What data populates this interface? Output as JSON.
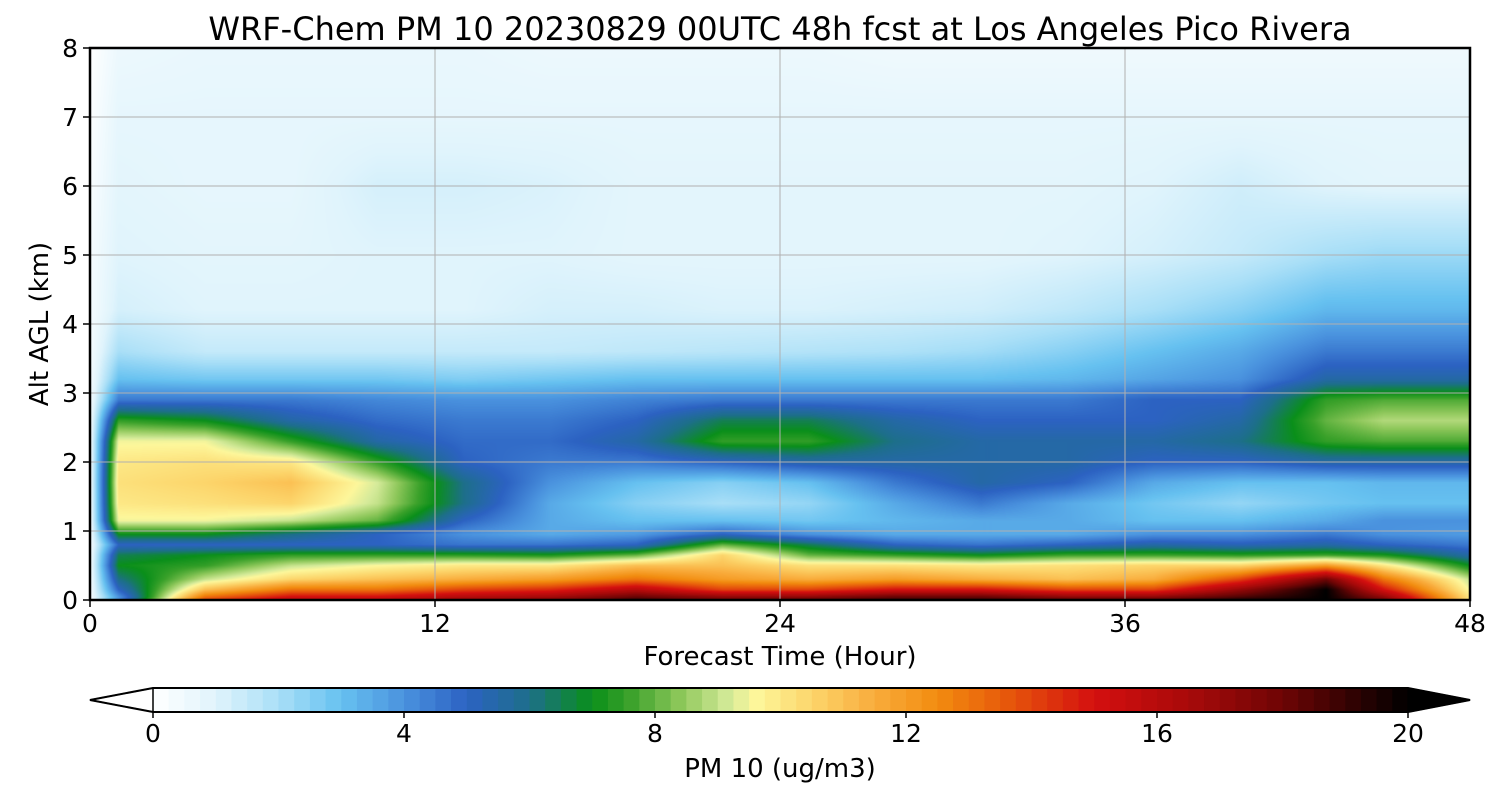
{
  "chart_data": {
    "type": "heatmap",
    "title": "WRF-Chem PM 10  20230829 00UTC 48h fcst at Los Angeles Pico Rivera",
    "xlabel": "Forecast Time (Hour)",
    "ylabel": "Alt AGL (km)",
    "xlim": [
      0,
      48
    ],
    "ylim": [
      0,
      8
    ],
    "x_ticks": [
      "0",
      "12",
      "24",
      "36",
      "48"
    ],
    "y_ticks": [
      "0",
      "1",
      "2",
      "3",
      "4",
      "5",
      "6",
      "7",
      "8"
    ],
    "grid": true,
    "colorbar": {
      "label": "PM 10  (ug/m3)",
      "range": [
        0,
        20
      ],
      "ticks": [
        "0",
        "4",
        "8",
        "12",
        "16",
        "20"
      ],
      "extend": "both",
      "colormap": [
        [
          0,
          "#ffffff"
        ],
        [
          1,
          "#e0f4fc"
        ],
        [
          2,
          "#a9dff7"
        ],
        [
          3,
          "#66c1f0"
        ],
        [
          4,
          "#4a92de"
        ],
        [
          5,
          "#2c62c2"
        ],
        [
          6,
          "#1d6f8a"
        ],
        [
          7,
          "#0a8f1a"
        ],
        [
          7.6,
          "#3aa12a"
        ],
        [
          8.4,
          "#8dc75a"
        ],
        [
          9.2,
          "#d6eb9a"
        ],
        [
          9.6,
          "#fdf79b"
        ],
        [
          10.5,
          "#fcd56b"
        ],
        [
          11.5,
          "#f9ac3c"
        ],
        [
          12.5,
          "#f28c0f"
        ],
        [
          13.5,
          "#e85d0b"
        ],
        [
          15,
          "#d40f0f"
        ],
        [
          16.5,
          "#a80a0a"
        ],
        [
          18,
          "#6e0505"
        ],
        [
          20,
          "#000000"
        ]
      ]
    },
    "hours": [
      0,
      1,
      4,
      7,
      10,
      13,
      16,
      19,
      22,
      25,
      28,
      31,
      34,
      37,
      40,
      43,
      45,
      48
    ],
    "levels_km": [
      0,
      0.05,
      0.15,
      0.3,
      0.5,
      0.65,
      0.8,
      0.95,
      1.15,
      1.4,
      1.7,
      2.0,
      2.3,
      2.6,
      2.9,
      3.2,
      3.6,
      4.2,
      5.0,
      6.0,
      7.0,
      8.0
    ],
    "values": [
      [
        0.3,
        4,
        14,
        16,
        16,
        17,
        17.5,
        19,
        18,
        18.5,
        19,
        19,
        18.5,
        18.5,
        19.5,
        20,
        18,
        10
      ],
      [
        0.3,
        4,
        13,
        15,
        15,
        16,
        16.5,
        18,
        17,
        17,
        18,
        18,
        17,
        17,
        18.5,
        20,
        17,
        10
      ],
      [
        0.3,
        5,
        11,
        13,
        13,
        14,
        14.5,
        16,
        14,
        14,
        15,
        15,
        14,
        14,
        17,
        20,
        15,
        9.5
      ],
      [
        0.3,
        6,
        9,
        10.5,
        11,
        11.5,
        12,
        13,
        12,
        11.5,
        12,
        11.5,
        11,
        11.5,
        14,
        18,
        13,
        9
      ],
      [
        0.3,
        7,
        7.5,
        9,
        9.6,
        10,
        10,
        11,
        11,
        10.2,
        10.2,
        10,
        10.2,
        10.5,
        10.5,
        12,
        10,
        7
      ],
      [
        0.3,
        6.5,
        7,
        7.5,
        7.5,
        7.4,
        7.2,
        8,
        10.5,
        8,
        7.5,
        7,
        7.6,
        7.6,
        7.4,
        7.6,
        7.2,
        5.5
      ],
      [
        0.3,
        5,
        5,
        5,
        5,
        4.6,
        4.6,
        5,
        8,
        6.5,
        5,
        4.6,
        5,
        5.5,
        5.2,
        5.5,
        5,
        4.5
      ],
      [
        0.3,
        7,
        7,
        6,
        5,
        4,
        3.5,
        3.8,
        5,
        4,
        3.5,
        3.5,
        3.5,
        4,
        4,
        4.5,
        4,
        3.8
      ],
      [
        0.3,
        9.5,
        9.5,
        9,
        8,
        5,
        3.5,
        3,
        3,
        2.8,
        3.2,
        3.5,
        3.5,
        3,
        3,
        3.5,
        4,
        4
      ],
      [
        0.3,
        10,
        10.2,
        10.5,
        9,
        6,
        3.5,
        2.5,
        2,
        2.3,
        3.5,
        4.5,
        3.5,
        2.8,
        2.3,
        2.8,
        3,
        3
      ],
      [
        0.3,
        10.2,
        10.5,
        11,
        9.2,
        6,
        4,
        3,
        2.5,
        3,
        4.5,
        5.5,
        5,
        3.5,
        3,
        3,
        3.2,
        3.2
      ],
      [
        0.3,
        10,
        10.2,
        10,
        7.5,
        5,
        4.5,
        4.5,
        5,
        5.5,
        5.5,
        5.5,
        5.5,
        5,
        5,
        5.5,
        5.5,
        5.5
      ],
      [
        0.3,
        9.5,
        9.5,
        7.5,
        5.5,
        4.8,
        4.8,
        5.5,
        7.5,
        7.5,
        6,
        5.5,
        5.5,
        5.5,
        6,
        7.5,
        7.8,
        7.8
      ],
      [
        0.3,
        7.5,
        7,
        5.5,
        4.8,
        4.5,
        4.5,
        5,
        6.5,
        6.5,
        5.5,
        5,
        5,
        5,
        5.5,
        8,
        8.8,
        8.8
      ],
      [
        0.3,
        4.5,
        4.5,
        4.5,
        4.2,
        4,
        4,
        4.3,
        4.5,
        4.5,
        4.5,
        4.5,
        4.5,
        5,
        5,
        7.5,
        7.8,
        7.8
      ],
      [
        0.3,
        3,
        2.8,
        2.8,
        2.8,
        2.6,
        2.8,
        3,
        3,
        3,
        3,
        3,
        3.2,
        3.6,
        4,
        5.5,
        5.5,
        5.5
      ],
      [
        0.3,
        2,
        1.5,
        1.5,
        1.5,
        1.5,
        1.5,
        1.6,
        1.7,
        1.8,
        1.9,
        2.1,
        2.5,
        3,
        3.5,
        4.5,
        4.5,
        4.5
      ],
      [
        0.3,
        1.2,
        1,
        1,
        1,
        1,
        1.2,
        1.2,
        1.1,
        1.1,
        1.2,
        1.3,
        1.6,
        2,
        2.5,
        3.2,
        3.2,
        3.2
      ],
      [
        0.3,
        1,
        0.9,
        0.9,
        1,
        1,
        1,
        0.9,
        0.9,
        0.9,
        0.9,
        0.9,
        1,
        1.2,
        1.5,
        2,
        2.2,
        2.2
      ],
      [
        0.2,
        0.9,
        0.8,
        0.8,
        1.2,
        1.2,
        1.1,
        0.9,
        0.9,
        0.9,
        0.9,
        0.9,
        0.9,
        1,
        1.3,
        1,
        0.9,
        0.9
      ],
      [
        0.1,
        0.8,
        0.8,
        0.8,
        0.8,
        0.8,
        0.8,
        0.8,
        0.8,
        0.8,
        0.8,
        0.8,
        0.8,
        0.8,
        0.8,
        0.8,
        0.8,
        0.8
      ],
      [
        0,
        0.6,
        0.7,
        0.7,
        0.7,
        0.7,
        0.6,
        0.6,
        0.6,
        0.6,
        0.5,
        0.5,
        0.5,
        0.5,
        0.5,
        0.5,
        0.5,
        0.5
      ]
    ]
  }
}
